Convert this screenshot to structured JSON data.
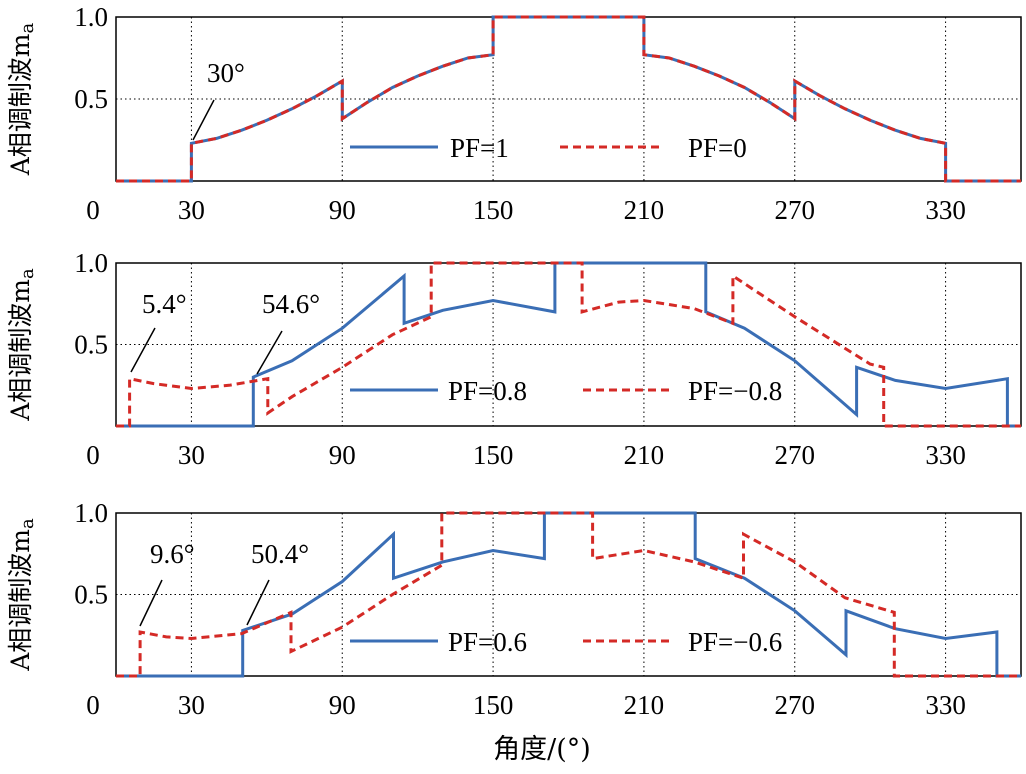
{
  "chart_data": [
    {
      "type": "line",
      "ylabel": "A相调制波m",
      "ylabel_sub": "a",
      "xlim": [
        0,
        360
      ],
      "ylim": [
        0,
        1
      ],
      "xticks": [
        "0",
        "30",
        "90",
        "150",
        "210",
        "270",
        "330"
      ],
      "xtick_values": [
        0,
        30,
        90,
        150,
        210,
        270,
        330
      ],
      "yticks": [
        "0.5",
        "1.0"
      ],
      "ytick_values": [
        0.5,
        1.0
      ],
      "grid": true,
      "legend": "bottom-center",
      "annotations": [
        {
          "text": "30°",
          "x": 30,
          "y": 0.24
        }
      ],
      "series": [
        {
          "name": "PF=1",
          "color": "#3a6eb5",
          "style": "solid",
          "x": [
            0,
            30,
            30,
            40,
            50,
            60,
            70,
            80,
            90,
            90,
            100,
            110,
            120,
            130,
            140,
            150,
            150,
            210,
            210,
            220,
            230,
            240,
            250,
            260,
            270,
            270,
            280,
            290,
            300,
            310,
            320,
            330,
            330,
            360
          ],
          "y": [
            0,
            0,
            0.23,
            0.26,
            0.31,
            0.37,
            0.44,
            0.52,
            0.61,
            0.38,
            0.48,
            0.57,
            0.64,
            0.7,
            0.75,
            0.77,
            1.0,
            1.0,
            0.77,
            0.75,
            0.7,
            0.64,
            0.57,
            0.48,
            0.38,
            0.61,
            0.52,
            0.44,
            0.37,
            0.31,
            0.26,
            0.23,
            0,
            0
          ]
        },
        {
          "name": "PF=0",
          "color": "#d42a26",
          "style": "dashed",
          "x": [
            0,
            30,
            30,
            40,
            50,
            60,
            70,
            80,
            90,
            90,
            100,
            110,
            120,
            130,
            140,
            150,
            150,
            210,
            210,
            220,
            230,
            240,
            250,
            260,
            270,
            270,
            280,
            290,
            300,
            310,
            320,
            330,
            330,
            360
          ],
          "y": [
            0,
            0,
            0.23,
            0.26,
            0.31,
            0.37,
            0.44,
            0.52,
            0.61,
            0.38,
            0.48,
            0.57,
            0.64,
            0.7,
            0.75,
            0.77,
            1.0,
            1.0,
            0.77,
            0.75,
            0.7,
            0.64,
            0.57,
            0.48,
            0.38,
            0.61,
            0.52,
            0.44,
            0.37,
            0.31,
            0.26,
            0.23,
            0,
            0
          ]
        }
      ]
    },
    {
      "type": "line",
      "ylabel": "A相调制波m",
      "ylabel_sub": "a",
      "xlim": [
        0,
        360
      ],
      "ylim": [
        0,
        1
      ],
      "xticks": [
        "0",
        "30",
        "90",
        "150",
        "210",
        "270",
        "330"
      ],
      "xtick_values": [
        0,
        30,
        90,
        150,
        210,
        270,
        330
      ],
      "yticks": [
        "0.5",
        "1.0"
      ],
      "ytick_values": [
        0.5,
        1.0
      ],
      "grid": true,
      "legend": "bottom-center",
      "annotations": [
        {
          "text": "5.4°",
          "x": 5.4,
          "y": 0.29
        },
        {
          "text": "54.6°",
          "x": 54.6,
          "y": 0.3
        }
      ],
      "series": [
        {
          "name": "PF=0.8",
          "color": "#3a6eb5",
          "style": "solid",
          "x": [
            0,
            54.6,
            54.6,
            70,
            90,
            114.6,
            114.6,
            130,
            150,
            174.6,
            174.6,
            234.6,
            234.6,
            250,
            270,
            294.6,
            294.6,
            310,
            330,
            354.6,
            354.6,
            360
          ],
          "y": [
            0,
            0,
            0.3,
            0.4,
            0.6,
            0.92,
            0.63,
            0.71,
            0.77,
            0.7,
            1.0,
            1.0,
            0.7,
            0.6,
            0.4,
            0.07,
            0.36,
            0.28,
            0.23,
            0.29,
            0,
            0
          ]
        },
        {
          "name": "PF=−0.8",
          "color": "#d42a26",
          "style": "dashed",
          "x": [
            0,
            5.4,
            5.4,
            15,
            30,
            45,
            60.4,
            60.4,
            70,
            90,
            110,
            125.4,
            125.4,
            185.4,
            185.4,
            200,
            210,
            230,
            245.4,
            245.4,
            270,
            300,
            305.4,
            305.4,
            360
          ],
          "y": [
            0,
            0,
            0.29,
            0.26,
            0.23,
            0.25,
            0.29,
            0.08,
            0.18,
            0.36,
            0.56,
            0.67,
            1.0,
            1.0,
            0.7,
            0.76,
            0.77,
            0.72,
            0.63,
            0.92,
            0.67,
            0.38,
            0.36,
            0,
            0
          ]
        }
      ]
    },
    {
      "type": "line",
      "ylabel": "A相调制波m",
      "ylabel_sub": "a",
      "xlim": [
        0,
        360
      ],
      "ylim": [
        0,
        1
      ],
      "xticks": [
        "0",
        "30",
        "90",
        "150",
        "210",
        "270",
        "330"
      ],
      "xtick_values": [
        0,
        30,
        90,
        150,
        210,
        270,
        330
      ],
      "yticks": [
        "0.5",
        "1.0"
      ],
      "ytick_values": [
        0.5,
        1.0
      ],
      "grid": true,
      "legend": "bottom-center",
      "xlabel": "角度/(°)",
      "annotations": [
        {
          "text": "9.6°",
          "x": 9.6,
          "y": 0.27
        },
        {
          "text": "50.4°",
          "x": 50.4,
          "y": 0.28
        }
      ],
      "series": [
        {
          "name": "PF=0.6",
          "color": "#3a6eb5",
          "style": "solid",
          "x": [
            0,
            50.4,
            50.4,
            70,
            90,
            110.4,
            110.4,
            130,
            150,
            170.4,
            170.4,
            230.4,
            230.4,
            250,
            270,
            290.4,
            290.4,
            310,
            330,
            350.4,
            350.4,
            360
          ],
          "y": [
            0,
            0,
            0.28,
            0.38,
            0.58,
            0.87,
            0.6,
            0.7,
            0.77,
            0.72,
            1.0,
            1.0,
            0.72,
            0.6,
            0.4,
            0.13,
            0.4,
            0.29,
            0.23,
            0.27,
            0,
            0
          ]
        },
        {
          "name": "PF=−0.6",
          "color": "#d42a26",
          "style": "dashed",
          "x": [
            0,
            9.6,
            9.6,
            20,
            30,
            50,
            69.6,
            69.6,
            90,
            110,
            129.6,
            129.6,
            189.6,
            189.6,
            210,
            230,
            249.6,
            249.6,
            270,
            290,
            309.6,
            309.6,
            360
          ],
          "y": [
            0,
            0,
            0.27,
            0.24,
            0.23,
            0.26,
            0.39,
            0.15,
            0.3,
            0.5,
            0.68,
            1.0,
            1.0,
            0.72,
            0.77,
            0.7,
            0.6,
            0.87,
            0.7,
            0.48,
            0.39,
            0,
            0
          ]
        }
      ]
    }
  ]
}
